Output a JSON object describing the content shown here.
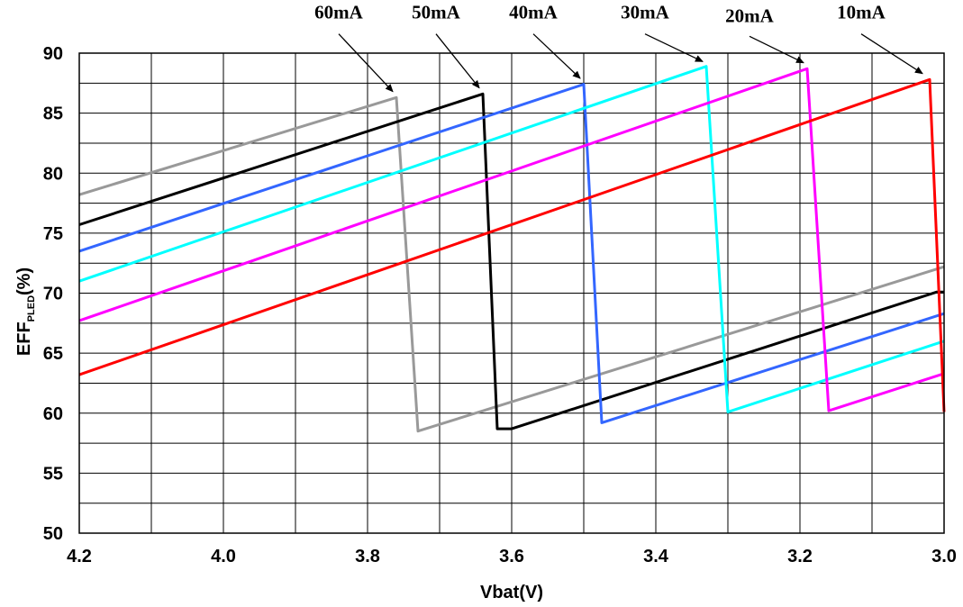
{
  "chart_data": {
    "type": "line",
    "title": "",
    "xlabel": "Vbat(V)",
    "ylabel": {
      "main": "EFF",
      "sub": "PLED",
      "suffix": "(%)"
    },
    "xlim": [
      4.2,
      3.0
    ],
    "x_reversed": true,
    "ylim": [
      50,
      90
    ],
    "x_ticks": [
      4.2,
      4.0,
      3.8,
      3.6,
      3.4,
      3.2,
      3.0
    ],
    "x_tick_labels": [
      "4.2",
      "4.0",
      "3.8",
      "3.6",
      "3.4",
      "3.2",
      "3.0"
    ],
    "y_ticks": [
      50,
      55,
      60,
      65,
      70,
      75,
      80,
      85,
      90
    ],
    "y_tick_labels": [
      "50",
      "55",
      "60",
      "65",
      "70",
      "75",
      "80",
      "85",
      "90"
    ],
    "grid": true,
    "legend": "callout labels with arrows above plot",
    "series": [
      {
        "name": "60mA",
        "color": "#999999",
        "points": [
          [
            4.2,
            78.2
          ],
          [
            3.76,
            86.3
          ],
          [
            3.73,
            58.5
          ],
          [
            3.0,
            72.2
          ]
        ]
      },
      {
        "name": "50mA",
        "color": "#000000",
        "points": [
          [
            4.2,
            75.7
          ],
          [
            3.64,
            86.6
          ],
          [
            3.62,
            58.7
          ],
          [
            3.6,
            58.7
          ],
          [
            3.01,
            70.1
          ],
          [
            3.0,
            70.1
          ]
        ]
      },
      {
        "name": "40mA",
        "color": "#3366ff",
        "points": [
          [
            4.2,
            73.5
          ],
          [
            3.5,
            87.4
          ],
          [
            3.475,
            59.2
          ],
          [
            3.0,
            68.3
          ]
        ]
      },
      {
        "name": "30mA",
        "color": "#00ffff",
        "points": [
          [
            4.2,
            71.0
          ],
          [
            3.33,
            88.9
          ],
          [
            3.3,
            60.1
          ],
          [
            3.0,
            66.0
          ]
        ]
      },
      {
        "name": "20mA",
        "color": "#ff00ff",
        "points": [
          [
            4.2,
            67.7
          ],
          [
            3.19,
            88.7
          ],
          [
            3.16,
            60.2
          ],
          [
            3.0,
            63.3
          ]
        ]
      },
      {
        "name": "10mA",
        "color": "#ff0000",
        "points": [
          [
            4.2,
            63.2
          ],
          [
            3.02,
            87.8
          ],
          [
            3.0,
            60.1
          ]
        ]
      }
    ],
    "annotations": [
      {
        "text": "60mA",
        "label_at": [
          3.84,
          92.9
        ],
        "arrow_from": [
          3.84,
          91.6
        ],
        "arrow_to": [
          3.765,
          86.8
        ]
      },
      {
        "text": "50mA",
        "label_at": [
          3.705,
          92.9
        ],
        "arrow_from": [
          3.705,
          91.6
        ],
        "arrow_to": [
          3.645,
          87.1
        ]
      },
      {
        "text": "40mA",
        "label_at": [
          3.57,
          92.9
        ],
        "arrow_from": [
          3.57,
          91.6
        ],
        "arrow_to": [
          3.505,
          87.9
        ]
      },
      {
        "text": "30mA",
        "label_at": [
          3.415,
          92.9
        ],
        "arrow_from": [
          3.415,
          91.6
        ],
        "arrow_to": [
          3.335,
          89.3
        ]
      },
      {
        "text": "20mA",
        "label_at": [
          3.27,
          92.6
        ],
        "arrow_from": [
          3.27,
          91.4
        ],
        "arrow_to": [
          3.195,
          89.2
        ]
      },
      {
        "text": "10mA",
        "label_at": [
          3.115,
          92.9
        ],
        "arrow_from": [
          3.115,
          91.6
        ],
        "arrow_to": [
          3.03,
          88.3
        ]
      }
    ]
  }
}
